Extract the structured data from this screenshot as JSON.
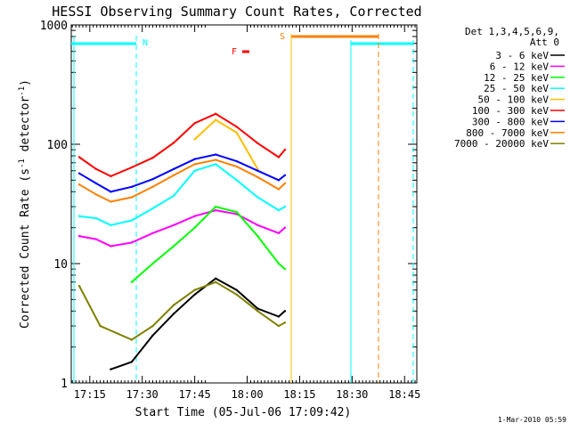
{
  "chart_data": {
    "type": "line",
    "title": "HESSI Observing Summary Count Rates, Corrected",
    "xlabel": "Start Time (05-Jul-06 17:09:42)",
    "ylabel_main": "Corrected Count Rate (s",
    "ylabel_sup1": "-1",
    "ylabel_mid": " detector",
    "ylabel_sup2": "-1",
    "ylabel_end": ")",
    "y_scale": "log",
    "ylim": [
      1,
      1000
    ],
    "xlim": [
      "17:09:42",
      "18:48:30"
    ],
    "x_ticks": [
      "17:15",
      "17:30",
      "17:45",
      "18:00",
      "18:15",
      "18:30",
      "18:45"
    ],
    "y_ticks": [
      "1",
      "10",
      "100",
      "1000"
    ],
    "legend_position": "top-right",
    "legend_header": [
      "Det 1,3,4,5,6,9,",
      "Att 0"
    ],
    "series": [
      {
        "name": "3 - 6 keV",
        "color": "#000000",
        "values": [
          [
            17.35,
            1.3
          ],
          [
            17.45,
            1.5
          ],
          [
            17.55,
            2.5
          ],
          [
            17.65,
            3.8
          ],
          [
            17.75,
            5.5
          ],
          [
            17.85,
            7.5
          ],
          [
            17.95,
            6.0
          ],
          [
            18.05,
            4.2
          ],
          [
            18.15,
            3.6
          ],
          [
            18.18,
            4.0
          ]
        ]
      },
      {
        "name": "6 - 12 keV",
        "color": "#ff00ff",
        "values": [
          [
            17.2,
            17
          ],
          [
            17.28,
            16
          ],
          [
            17.35,
            14
          ],
          [
            17.45,
            15
          ],
          [
            17.55,
            18
          ],
          [
            17.65,
            21
          ],
          [
            17.75,
            25
          ],
          [
            17.85,
            28
          ],
          [
            17.95,
            26
          ],
          [
            18.05,
            21
          ],
          [
            18.15,
            18
          ],
          [
            18.18,
            20
          ]
        ]
      },
      {
        "name": "12 - 25 keV",
        "color": "#00ff00",
        "values": [
          [
            17.45,
            7
          ],
          [
            17.55,
            10
          ],
          [
            17.65,
            14
          ],
          [
            17.75,
            20
          ],
          [
            17.85,
            30
          ],
          [
            17.95,
            27
          ],
          [
            18.05,
            17
          ],
          [
            18.15,
            10
          ],
          [
            18.18,
            9
          ]
        ]
      },
      {
        "name": "25 - 50 keV",
        "color": "#00ffff",
        "values": [
          [
            17.2,
            25
          ],
          [
            17.28,
            24
          ],
          [
            17.35,
            21
          ],
          [
            17.45,
            23
          ],
          [
            17.55,
            29
          ],
          [
            17.65,
            37
          ],
          [
            17.75,
            60
          ],
          [
            17.85,
            68
          ],
          [
            17.95,
            50
          ],
          [
            18.05,
            36
          ],
          [
            18.15,
            28
          ],
          [
            18.18,
            30
          ]
        ]
      },
      {
        "name": "50 - 100 keV",
        "color": "#ffbf00",
        "values": [
          [
            17.75,
            110
          ],
          [
            17.85,
            160
          ],
          [
            17.95,
            125
          ],
          [
            18.05,
            62
          ]
        ]
      },
      {
        "name": "100 - 300 keV",
        "color": "#ff0000",
        "values": [
          [
            17.2,
            78
          ],
          [
            17.28,
            62
          ],
          [
            17.35,
            54
          ],
          [
            17.45,
            64
          ],
          [
            17.55,
            77
          ],
          [
            17.65,
            103
          ],
          [
            17.75,
            150
          ],
          [
            17.85,
            180
          ],
          [
            17.95,
            140
          ],
          [
            18.05,
            102
          ],
          [
            18.15,
            78
          ],
          [
            18.18,
            90
          ]
        ]
      },
      {
        "name": "300 - 800 keV",
        "color": "#0000ff",
        "values": [
          [
            17.2,
            57
          ],
          [
            17.28,
            47
          ],
          [
            17.35,
            40
          ],
          [
            17.45,
            44
          ],
          [
            17.55,
            51
          ],
          [
            17.65,
            62
          ],
          [
            17.75,
            75
          ],
          [
            17.85,
            82
          ],
          [
            17.95,
            72
          ],
          [
            18.05,
            60
          ],
          [
            18.15,
            50
          ],
          [
            18.18,
            55
          ]
        ]
      },
      {
        "name": "800 - 7000 keV",
        "color": "#ff8000",
        "values": [
          [
            17.2,
            46
          ],
          [
            17.28,
            38
          ],
          [
            17.35,
            33
          ],
          [
            17.45,
            36
          ],
          [
            17.55,
            44
          ],
          [
            17.65,
            55
          ],
          [
            17.75,
            68
          ],
          [
            17.85,
            74
          ],
          [
            17.95,
            65
          ],
          [
            18.05,
            53
          ],
          [
            18.15,
            42
          ],
          [
            18.18,
            47
          ]
        ]
      },
      {
        "name": "7000 - 20000 keV",
        "color": "#808000",
        "values": [
          [
            17.2,
            6.5
          ],
          [
            17.3,
            3.0
          ],
          [
            17.45,
            2.3
          ],
          [
            17.55,
            3.0
          ],
          [
            17.65,
            4.5
          ],
          [
            17.75,
            6.0
          ],
          [
            17.85,
            7.0
          ],
          [
            17.95,
            5.5
          ],
          [
            18.05,
            4.0
          ],
          [
            18.15,
            3.0
          ],
          [
            18.18,
            3.2
          ]
        ]
      }
    ],
    "annotations": {
      "night_label": "N",
      "flare_label": "F",
      "saa_label": "S"
    },
    "footer_date": "1-Mar-2010 05:59"
  }
}
